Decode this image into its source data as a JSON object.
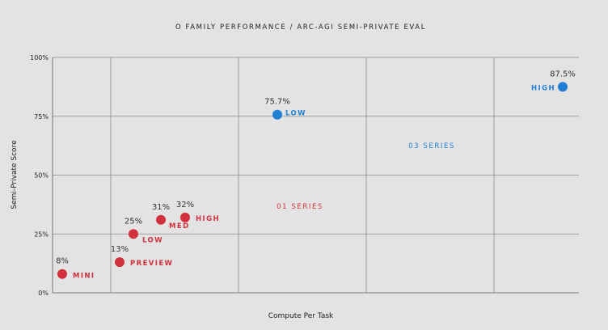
{
  "chart_data": {
    "type": "scatter",
    "title": "O FAMILY PERFORMANCE / ARC-AGI SEMI-PRIVATE EVAL",
    "xlabel": "Compute Per Task",
    "ylabel": "Semi-Private Score",
    "ylim": [
      0,
      100
    ],
    "yticks": [
      "0%",
      "25%",
      "50%",
      "75%",
      "100%"
    ],
    "x_tick_labels_shown": false,
    "grid": true,
    "colors": {
      "o1": "#d1303c",
      "o3": "#1f7fd4"
    },
    "series": [
      {
        "name": "01 SERIES",
        "points": [
          {
            "label": "MINI",
            "value": 8,
            "value_label": "8%"
          },
          {
            "label": "PREVIEW",
            "value": 13,
            "value_label": "13%"
          },
          {
            "label": "LOW",
            "value": 25,
            "value_label": "25%"
          },
          {
            "label": "MED",
            "value": 31,
            "value_label": "31%"
          },
          {
            "label": "HIGH",
            "value": 32,
            "value_label": "32%"
          }
        ]
      },
      {
        "name": "03 SERIES",
        "points": [
          {
            "label": "LOW",
            "value": 75.7,
            "value_label": "75.7%"
          },
          {
            "label": "HIGH",
            "value": 87.5,
            "value_label": "87.5%"
          }
        ]
      }
    ]
  }
}
